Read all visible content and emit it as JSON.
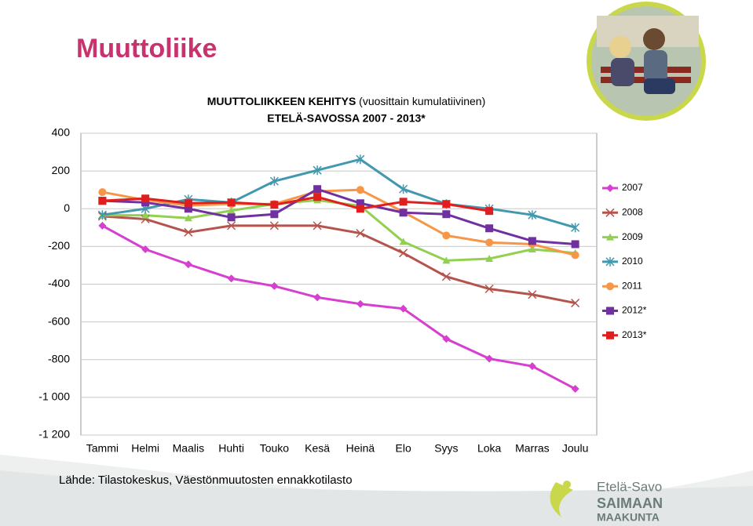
{
  "slide": {
    "title": "Muuttoliike",
    "source": "Lähde: Tilastokeskus, Väestönmuutosten ennakkotilasto",
    "logo": [
      "Etelä-Savo",
      "SAIMAAN",
      "MAAKUNTA"
    ]
  },
  "chart_data": {
    "type": "line",
    "title": [
      "MUUTTOLIIKKEEN KEHITYS",
      "(vuosittain kumulatiivinen)",
      "ETELÄ-SAVOSSA 2007 - 2013*"
    ],
    "categories": [
      "Tammi",
      "Helmi",
      "Maalis",
      "Huhti",
      "Touko",
      "Kesä",
      "Heinä",
      "Elo",
      "Syys",
      "Loka",
      "Marras",
      "Joulu"
    ],
    "ylim": [
      -1200,
      400
    ],
    "yticks": [
      400,
      200,
      0,
      -200,
      -400,
      -600,
      -800,
      {
        "value": -1000,
        "label": "-1 000"
      },
      {
        "value": -1200,
        "label": "-1 200"
      }
    ],
    "grid": true,
    "legend": "right",
    "series": [
      {
        "name": "2007",
        "color": "#d63fcf",
        "marker": "diamond",
        "values": [
          -90,
          -215,
          -295,
          -370,
          -410,
          -470,
          -505,
          -530,
          -690,
          -795,
          -835,
          -955
        ]
      },
      {
        "name": "2008",
        "color": "#b5534d",
        "marker": "x",
        "values": [
          -40,
          -55,
          -125,
          -90,
          -90,
          -90,
          -130,
          -235,
          -360,
          -425,
          -455,
          -500
        ]
      },
      {
        "name": "2009",
        "color": "#92d050",
        "marker": "triangle",
        "values": [
          -35,
          -35,
          -50,
          -10,
          25,
          45,
          15,
          -175,
          -275,
          -265,
          -215,
          -235
        ]
      },
      {
        "name": "2010",
        "color": "#4198af",
        "marker": "star",
        "values": [
          -33,
          0,
          50,
          33,
          146,
          204,
          262,
          104,
          25,
          0,
          -33,
          -100
        ]
      },
      {
        "name": "2011",
        "color": "#f79646",
        "marker": "circle",
        "values": [
          88,
          46,
          17,
          25,
          25,
          92,
          100,
          -17,
          -142,
          -179,
          -188,
          -246
        ]
      },
      {
        "name": "2012*",
        "color": "#7030a0",
        "marker": "square",
        "values": [
          42,
          33,
          0,
          -46,
          -29,
          104,
          29,
          -21,
          -29,
          -104,
          -171,
          -188
        ]
      },
      {
        "name": "2013*",
        "color": "#e01e1e",
        "marker": "square",
        "values": [
          42,
          54,
          29,
          33,
          21,
          62,
          0,
          37,
          25,
          -12,
          null,
          null
        ]
      }
    ]
  }
}
